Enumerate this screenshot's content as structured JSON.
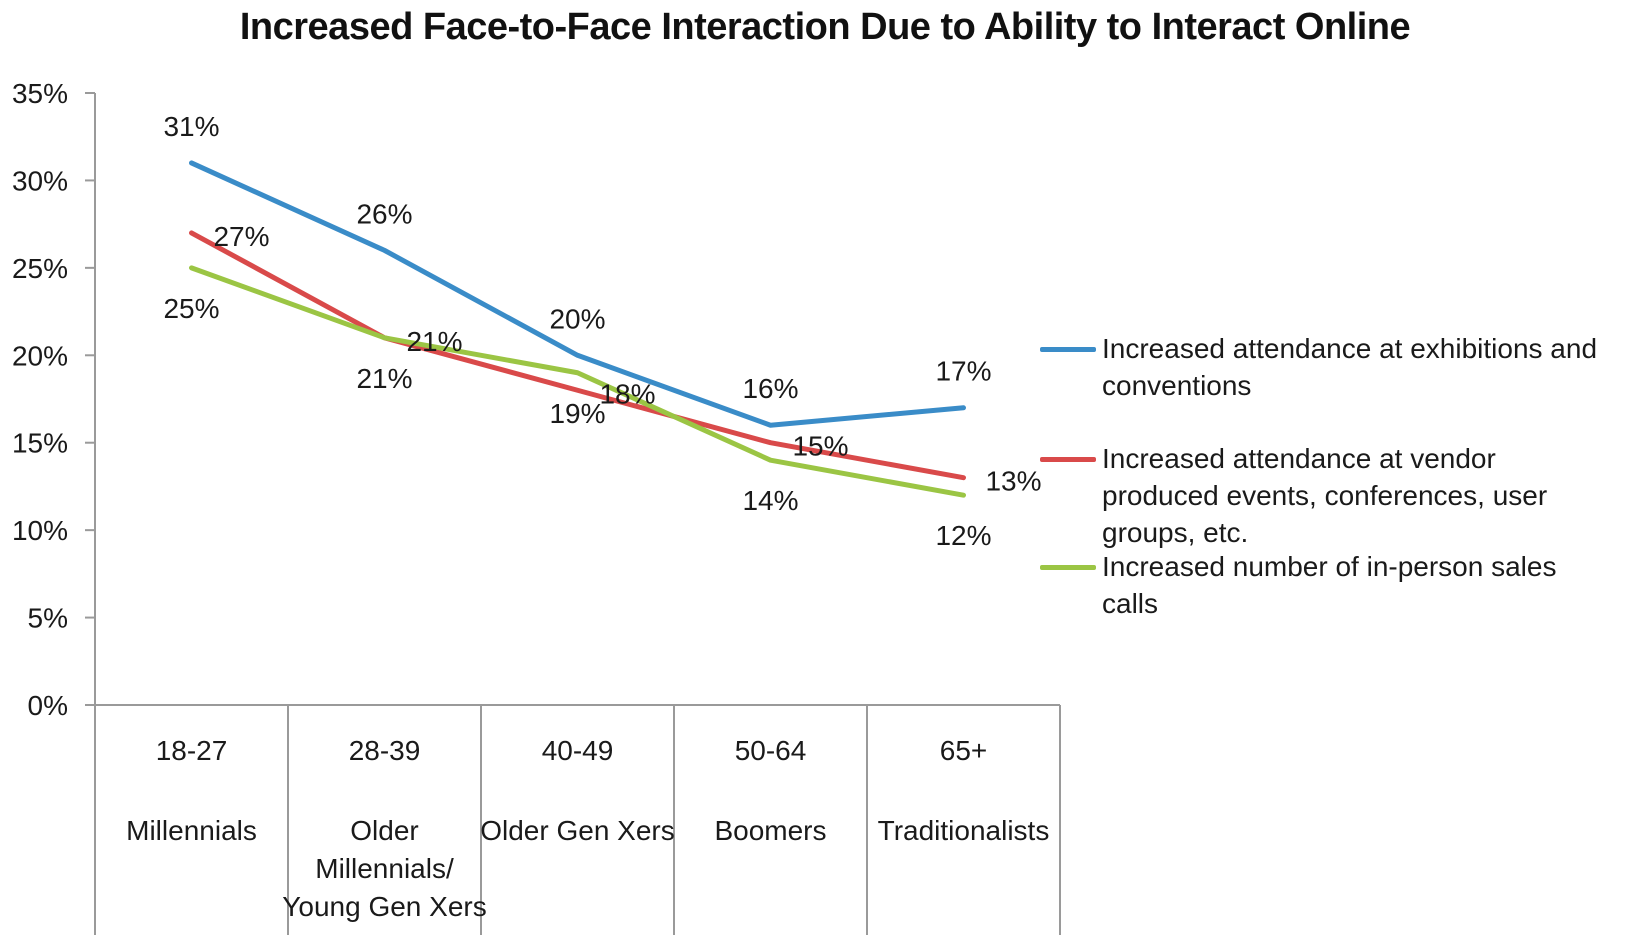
{
  "chart_data": {
    "type": "line",
    "title": "Increased Face-to-Face Interaction Due to Ability to Interact Online",
    "categories": [
      {
        "range": "18-27",
        "group": [
          "Millennials"
        ]
      },
      {
        "range": "28-39",
        "group": [
          "Older",
          "Millennials/",
          "Young Gen Xers"
        ]
      },
      {
        "range": "40-49",
        "group": [
          "Older Gen Xers"
        ]
      },
      {
        "range": "50-64",
        "group": [
          "Boomers"
        ]
      },
      {
        "range": "65+",
        "group": [
          "Traditionalists"
        ]
      }
    ],
    "y_ticks": [
      "0%",
      "5%",
      "10%",
      "15%",
      "20%",
      "25%",
      "30%",
      "35%"
    ],
    "ylim": [
      0,
      35
    ],
    "legend_position": "right",
    "series": [
      {
        "name": "Increased attendance at exhibitions and conventions",
        "legend_lines": [
          "Increased attendance at exhibitions and",
          "conventions"
        ],
        "color": "#3a8cc8",
        "values": [
          31,
          26,
          20,
          16,
          17
        ],
        "labels": [
          "31%",
          "26%",
          "20%",
          "16%",
          "17%"
        ]
      },
      {
        "name": "Increased attendance at vendor produced events, conferences, user groups, etc.",
        "legend_lines": [
          "Increased attendance at vendor",
          "produced events, conferences, user",
          "groups, etc."
        ],
        "color": "#d94a4a",
        "values": [
          27,
          21,
          18,
          15,
          13
        ],
        "labels": [
          "27%",
          "21%",
          "18%",
          "15%",
          "13%"
        ]
      },
      {
        "name": "Increased number of in-person sales calls",
        "legend_lines": [
          "Increased number of in-person sales",
          "calls"
        ],
        "color": "#9bc544",
        "values": [
          25,
          21,
          19,
          14,
          12
        ],
        "labels": [
          "25%",
          "21%",
          "19%",
          "14%",
          "12%"
        ]
      }
    ]
  }
}
